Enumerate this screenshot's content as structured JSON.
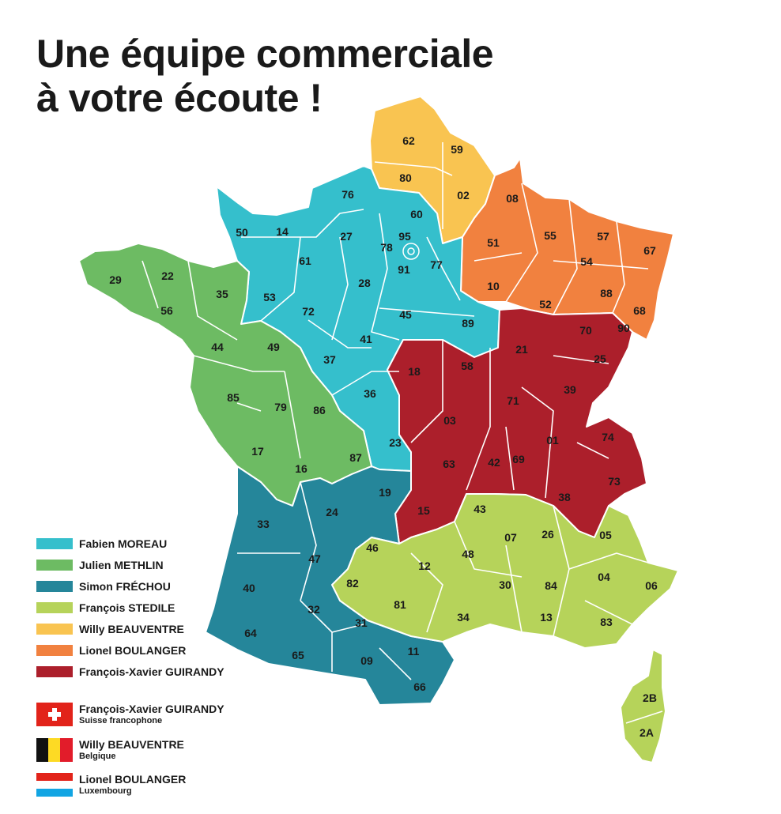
{
  "title": {
    "line1": "Une équipe commerciale",
    "line2": "à votre écoute !"
  },
  "colors": {
    "fabien": "#35bfcc",
    "julien": "#6dbb63",
    "simon": "#25869a",
    "francois": "#b6d35a",
    "willy": "#f9c451",
    "lionel": "#f1813f",
    "fxg": "#ac1f2b"
  },
  "legend": [
    {
      "name": "Fabien MOREAU",
      "color": "#35bfcc"
    },
    {
      "name": "Julien METHLIN",
      "color": "#6dbb63"
    },
    {
      "name": "Simon FRÉCHOU",
      "color": "#25869a"
    },
    {
      "name": "François STEDILE",
      "color": "#b6d35a"
    },
    {
      "name": "Willy BEAUVENTRE",
      "color": "#f9c451"
    },
    {
      "name": "Lionel BOULANGER",
      "color": "#f1813f"
    },
    {
      "name": "François-Xavier GUIRANDY",
      "color": "#ac1f2b"
    }
  ],
  "international": [
    {
      "name": "François-Xavier GUIRANDY",
      "country": "Suisse francophone",
      "flag": "switzerland-flag-icon"
    },
    {
      "name": "Willy BEAUVENTRE",
      "country": "Belgique",
      "flag": "belgium-flag-icon"
    },
    {
      "name": "Lionel BOULANGER",
      "country": "Luxembourg",
      "flag": "luxembourg-flag-icon"
    }
  ],
  "departments": {
    "d62": "62",
    "d59": "59",
    "d80": "80",
    "d02": "02",
    "d08": "08",
    "d76": "76",
    "d60": "60",
    "d50": "50",
    "d14": "14",
    "d27": "27",
    "d95": "95",
    "d78": "78",
    "d91": "91",
    "d77": "77",
    "d51": "51",
    "d55": "55",
    "d57": "57",
    "d67": "67",
    "d54": "54",
    "d61": "61",
    "d29": "29",
    "d22": "22",
    "d35": "35",
    "d56": "56",
    "d53": "53",
    "d72": "72",
    "d28": "28",
    "d10": "10",
    "d52": "52",
    "d88": "88",
    "d68": "68",
    "d45": "45",
    "d89": "89",
    "d70": "70",
    "d90": "90",
    "d44": "44",
    "d49": "49",
    "d37": "37",
    "d41": "41",
    "d21": "21",
    "d25": "25",
    "d18": "18",
    "d58": "58",
    "d39": "39",
    "d85": "85",
    "d79": "79",
    "d86": "86",
    "d36": "36",
    "d71": "71",
    "d03": "03",
    "d01": "01",
    "d74": "74",
    "d17": "17",
    "d87": "87",
    "d23": "23",
    "d63": "63",
    "d42": "42",
    "d69": "69",
    "d16": "16",
    "d73": "73",
    "d19": "19",
    "d38": "38",
    "d24": "24",
    "d33": "33",
    "d15": "15",
    "d43": "43",
    "d07": "07",
    "d26": "26",
    "d05": "05",
    "d46": "46",
    "d48": "48",
    "d47": "47",
    "d12": "12",
    "d04": "04",
    "d06": "06",
    "d40": "40",
    "d82": "82",
    "d30": "30",
    "d84": "84",
    "d32": "32",
    "d81": "81",
    "d34": "34",
    "d13": "13",
    "d83": "83",
    "d64": "64",
    "d31": "31",
    "d65": "65",
    "d09": "09",
    "d11": "11",
    "d66": "66",
    "d2B": "2B",
    "d2A": "2A"
  }
}
